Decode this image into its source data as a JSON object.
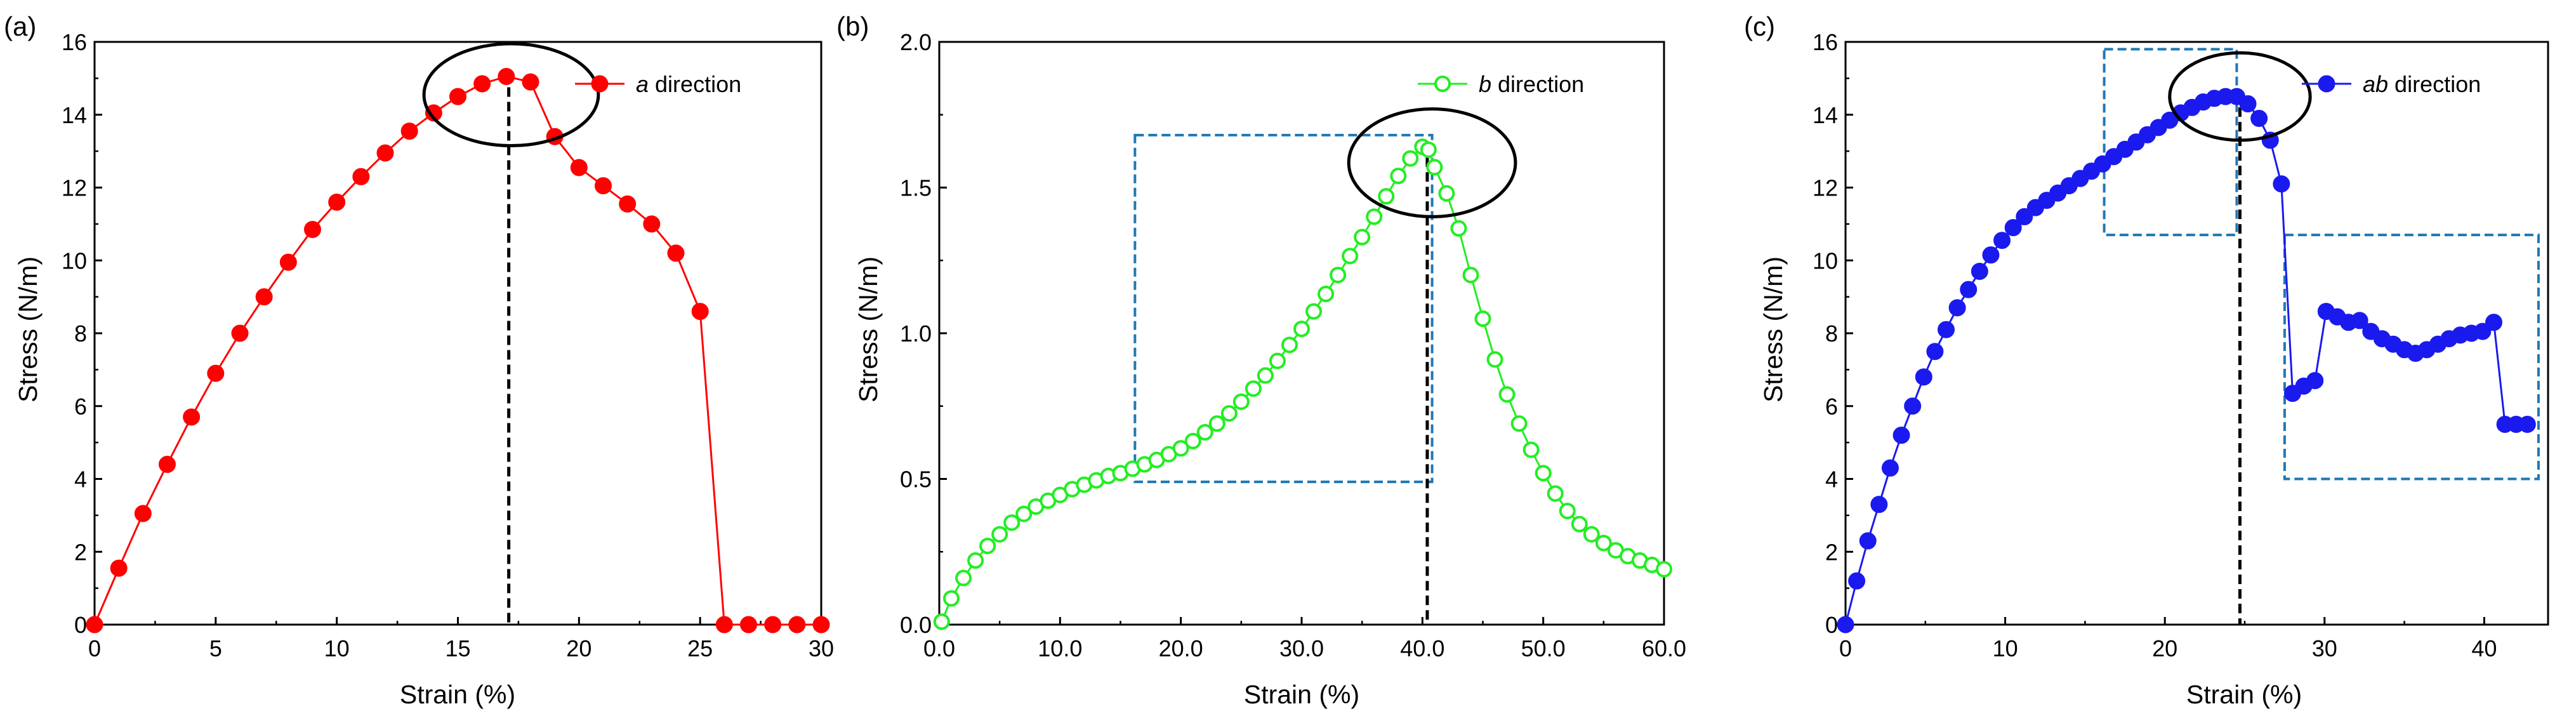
{
  "chart_data": [
    {
      "panel_label": "(a)",
      "type": "line",
      "xlabel": "Strain (%)",
      "ylabel": "Stress (N/m)",
      "xlim": [
        0,
        30
      ],
      "ylim": [
        0,
        16
      ],
      "xticks": [
        0,
        5,
        10,
        15,
        20,
        25,
        30
      ],
      "yticks": [
        0,
        2,
        4,
        6,
        8,
        10,
        12,
        14,
        16
      ],
      "tick_decimals": 0,
      "color": "#ff0000",
      "marker": "filled",
      "legend": {
        "position": "top-right",
        "italic": "a",
        "text": " direction"
      },
      "series": [
        {
          "name": "a direction",
          "x": [
            0,
            1,
            2,
            3,
            4,
            5,
            6,
            7,
            8,
            9,
            10,
            11,
            12,
            13,
            14,
            15,
            16,
            17,
            18,
            19,
            20,
            21,
            22,
            23,
            24,
            25,
            26,
            27,
            28,
            29,
            30
          ],
          "y": [
            0,
            1.55,
            3.05,
            4.4,
            5.7,
            6.9,
            8.0,
            9.0,
            9.95,
            10.85,
            11.6,
            12.3,
            12.95,
            13.55,
            14.05,
            14.5,
            14.85,
            15.05,
            14.9,
            13.4,
            12.55,
            12.05,
            11.55,
            11.0,
            10.2,
            8.6,
            0,
            0,
            0,
            0,
            0
          ]
        }
      ],
      "peak_line_x": 17.1,
      "ellipse": {
        "cx": 17.2,
        "cy": 14.55,
        "rx": 3.6,
        "ry": 1.4
      },
      "boxes": []
    },
    {
      "panel_label": "(b)",
      "type": "line",
      "xlabel": "Strain (%)",
      "ylabel": "Stress (N/m)",
      "xlim": [
        0,
        60
      ],
      "ylim": [
        0,
        2.0
      ],
      "xticks": [
        0,
        10,
        20,
        30,
        40,
        50,
        60
      ],
      "yticks": [
        0,
        0.5,
        1.0,
        1.5,
        2.0
      ],
      "tick_decimals": 1,
      "color": "#22ee22",
      "marker": "open",
      "legend": {
        "position": "top-right",
        "italic": "b",
        "text": " direction"
      },
      "series": [
        {
          "name": "b direction",
          "x": [
            0.2,
            1.0,
            2.0,
            3.0,
            4.0,
            5.0,
            6.0,
            7.0,
            8.0,
            9.0,
            10.0,
            11.0,
            12.0,
            13.0,
            14.0,
            15.0,
            16.0,
            17.0,
            18.0,
            19.0,
            20.0,
            21.0,
            22.0,
            23.0,
            24.0,
            25.0,
            26.0,
            27.0,
            28.0,
            29.0,
            30.0,
            31.0,
            32.0,
            33.0,
            34.0,
            35.0,
            36.0,
            37.0,
            38.0,
            39.0,
            40.0,
            40.5,
            41.0,
            42.0,
            43.0,
            44.0,
            45.0,
            46.0,
            47.0,
            48.0,
            49.0,
            50.0,
            51.0,
            52.0,
            53.0,
            54.0,
            55.0,
            56.0,
            57.0,
            58.0,
            59.0,
            60.0
          ],
          "y": [
            0.01,
            0.09,
            0.16,
            0.22,
            0.27,
            0.31,
            0.35,
            0.38,
            0.405,
            0.425,
            0.445,
            0.465,
            0.48,
            0.495,
            0.51,
            0.52,
            0.535,
            0.55,
            0.565,
            0.585,
            0.605,
            0.63,
            0.66,
            0.69,
            0.725,
            0.765,
            0.81,
            0.855,
            0.905,
            0.96,
            1.015,
            1.075,
            1.135,
            1.2,
            1.265,
            1.33,
            1.4,
            1.47,
            1.54,
            1.6,
            1.64,
            1.63,
            1.57,
            1.48,
            1.36,
            1.2,
            1.05,
            0.91,
            0.79,
            0.69,
            0.6,
            0.52,
            0.45,
            0.39,
            0.345,
            0.31,
            0.28,
            0.255,
            0.235,
            0.22,
            0.205,
            0.19
          ]
        }
      ],
      "peak_line_x": 40.4,
      "ellipse": {
        "cx": 40.8,
        "cy": 1.585,
        "rx": 6.9,
        "ry": 0.185
      },
      "boxes": [
        {
          "x0": 16.2,
          "x1": 40.8,
          "y0": 0.49,
          "y1": 1.68
        }
      ]
    },
    {
      "panel_label": "(c)",
      "type": "line",
      "xlabel": "Strain (%)",
      "ylabel": "Stress (N/m)",
      "xlim": [
        0,
        44
      ],
      "ylim": [
        0,
        16
      ],
      "xticks": [
        0,
        10,
        20,
        30,
        40
      ],
      "yticks": [
        0,
        2,
        4,
        6,
        8,
        10,
        12,
        14,
        16
      ],
      "tick_decimals": 0,
      "color": "#1a1aee",
      "marker": "filled",
      "legend": {
        "position": "top-right",
        "italic": "ab",
        "text": " direction"
      },
      "series": [
        {
          "name": "ab direction",
          "x": [
            0,
            0.7,
            1.4,
            2.1,
            2.8,
            3.5,
            4.2,
            4.9,
            5.6,
            6.3,
            7.0,
            7.7,
            8.4,
            9.1,
            9.8,
            10.5,
            11.2,
            11.9,
            12.6,
            13.3,
            14.0,
            14.7,
            15.4,
            16.1,
            16.8,
            17.5,
            18.2,
            18.9,
            19.6,
            20.3,
            21.0,
            21.7,
            22.4,
            23.1,
            23.8,
            24.5,
            25.2,
            25.9,
            26.6,
            27.3,
            28.0,
            28.7,
            29.4,
            30.1,
            30.8,
            31.5,
            32.2,
            32.9,
            33.6,
            34.3,
            35.0,
            35.7,
            36.4,
            37.1,
            37.8,
            38.5,
            39.2,
            39.9,
            40.6,
            41.3,
            42.0,
            42.7
          ],
          "y": [
            0,
            1.2,
            2.3,
            3.3,
            4.3,
            5.2,
            6.0,
            6.8,
            7.5,
            8.1,
            8.7,
            9.2,
            9.7,
            10.15,
            10.55,
            10.9,
            11.2,
            11.45,
            11.65,
            11.85,
            12.05,
            12.25,
            12.45,
            12.65,
            12.85,
            13.05,
            13.25,
            13.45,
            13.65,
            13.85,
            14.05,
            14.2,
            14.35,
            14.45,
            14.5,
            14.5,
            14.3,
            13.9,
            13.3,
            12.1,
            6.35,
            6.55,
            6.7,
            8.6,
            8.45,
            8.3,
            8.35,
            8.05,
            7.85,
            7.7,
            7.55,
            7.45,
            7.55,
            7.7,
            7.85,
            7.95,
            8.0,
            8.05,
            8.3,
            5.5,
            5.5,
            5.5
          ]
        }
      ],
      "peak_line_x": 24.7,
      "ellipse": {
        "cx": 24.7,
        "cy": 14.5,
        "rx": 4.4,
        "ry": 1.2
      },
      "boxes": [
        {
          "x0": 16.2,
          "x1": 24.5,
          "y0": 10.7,
          "y1": 15.8
        },
        {
          "x0": 27.5,
          "x1": 43.4,
          "y0": 4.0,
          "y1": 10.7
        }
      ]
    }
  ]
}
